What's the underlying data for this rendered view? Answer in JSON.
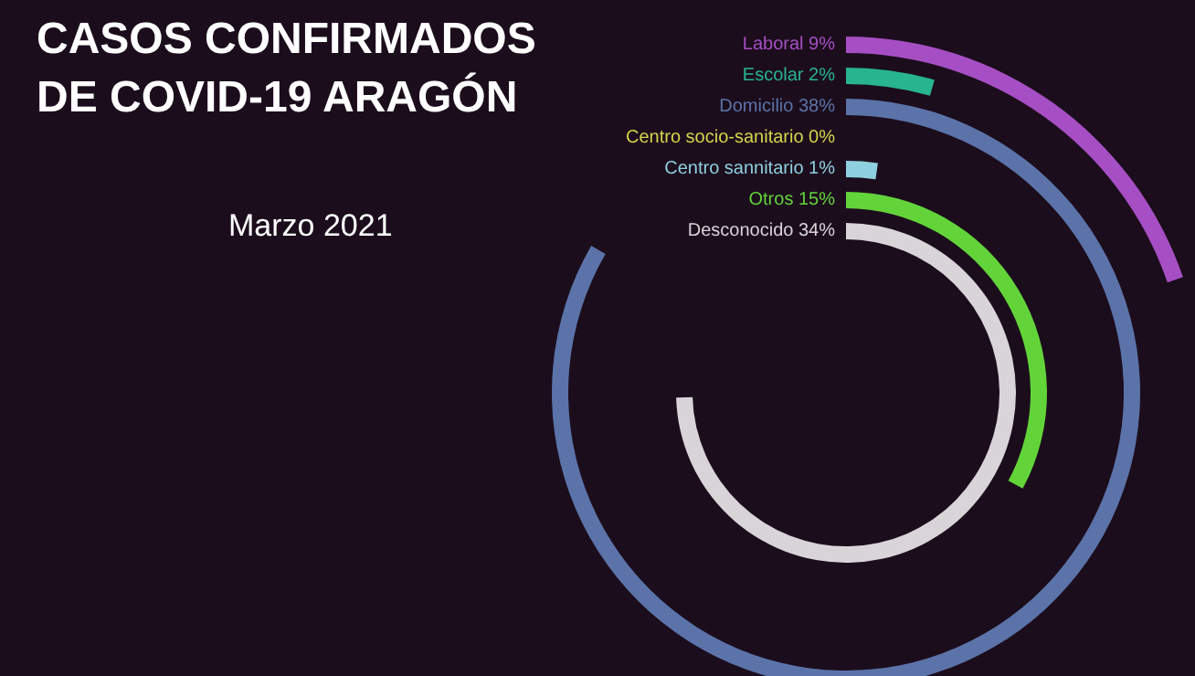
{
  "chart_data": {
    "type": "other",
    "title": "CASOS CONFIRMADOS\nDE COVID-19 ARAGÓN",
    "subtitle": "Marzo 2021",
    "categories": [
      "Laboral",
      "Escolar",
      "Domicilio",
      "Centro socio-sanitario",
      "Centro sannitario",
      "Otros",
      "Desconocido"
    ],
    "values": [
      9,
      2,
      38,
      0,
      1,
      15,
      34
    ],
    "value_labels": [
      "9%",
      "2%",
      "38%",
      "0%",
      "1%",
      "15%",
      "34%"
    ],
    "colors": [
      "#a64fc4",
      "#27b48f",
      "#5b73a8",
      "#d4d64a",
      "#8fd0e0",
      "#62d43a",
      "#d8d4d8"
    ]
  }
}
